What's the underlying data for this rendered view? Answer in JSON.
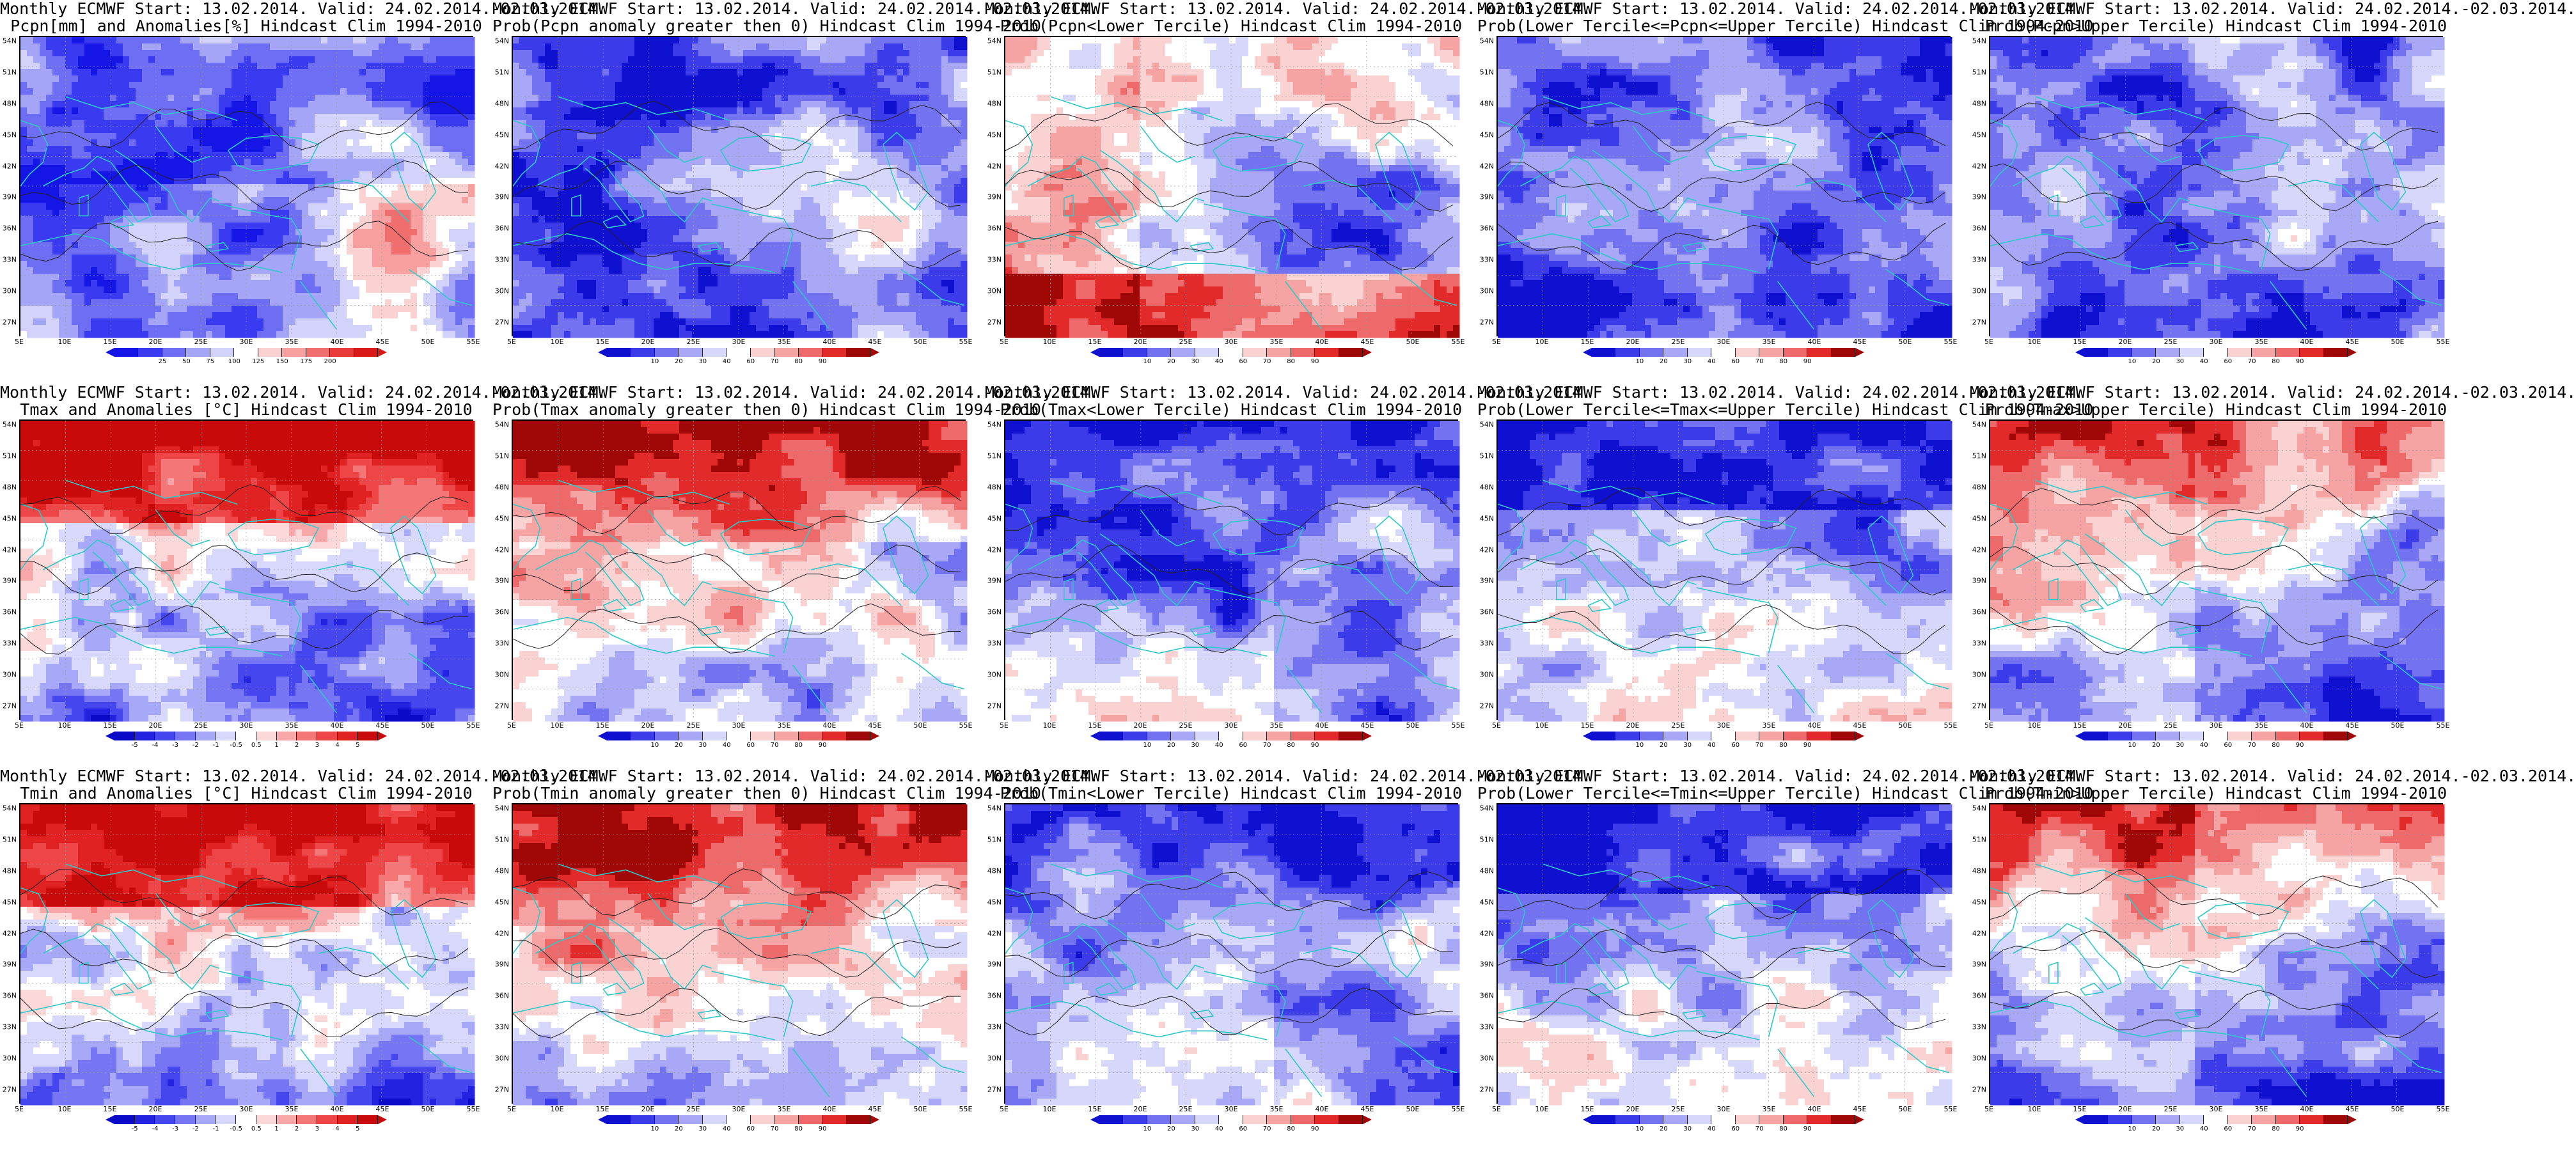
{
  "panels": [
    {
      "line1": "Monthly ECMWF Start: 13.02.2014. Valid: 24.02.2014.-02.03.2014.",
      "line2": "Pcpn[mm] and Anomalies[%] Hindcast Clim 1994-2010",
      "kind": "pcpn_anom",
      "cbar": "pcpn"
    },
    {
      "line1": "Monthly ECMWF Start: 13.02.2014. Valid: 24.02.2014.-02.03.2014.",
      "line2": "Prob(Pcpn anomaly greater then 0) Hindcast Clim 1994-2010",
      "kind": "pcpn_prob_pos",
      "cbar": "prob"
    },
    {
      "line1": "Monthly ECMWF Start: 13.02.2014. Valid: 24.02.2014.-02.03.2014.",
      "line2": "Prob(Pcpn<Lower Tercile) Hindcast Clim 1994-2010",
      "kind": "pcpn_low",
      "cbar": "prob"
    },
    {
      "line1": "Monthly ECMWF Start: 13.02.2014. Valid: 24.02.2014.-02.03.2014.",
      "line2": "Prob(Lower Tercile<=Pcpn<=Upper Tercile) Hindcast Clim 1994-2010",
      "kind": "pcpn_mid",
      "cbar": "prob"
    },
    {
      "line1": "Monthly ECMWF Start: 13.02.2014. Valid: 24.02.2014.-02.03.2014.",
      "line2": "Prob(Pcpn>Upper Tercile) Hindcast Clim 1994-2010",
      "kind": "pcpn_up",
      "cbar": "prob"
    },
    {
      "line1": "Monthly ECMWF Start: 13.02.2014. Valid: 24.02.2014.-02.03.2014.",
      "line2": "Tmax and Anomalies [°C] Hindcast Clim 1994-2010",
      "kind": "warm",
      "cbar": "temp"
    },
    {
      "line1": "Monthly ECMWF Start: 13.02.2014. Valid: 24.02.2014.-02.03.2014.",
      "line2": "Prob(Tmax anomaly greater then 0) Hindcast Clim 1994-2010",
      "kind": "warm_strong",
      "cbar": "prob"
    },
    {
      "line1": "Monthly ECMWF Start: 13.02.2014. Valid: 24.02.2014.-02.03.2014.",
      "line2": "Prob(Tmax<Lower Tercile) Hindcast Clim 1994-2010",
      "kind": "cold_strong",
      "cbar": "prob"
    },
    {
      "line1": "Monthly ECMWF Start: 13.02.2014. Valid: 24.02.2014.-02.03.2014.",
      "line2": "Prob(Lower Tercile<=Tmax<=Upper Tercile) Hindcast Clim 1994-2010",
      "kind": "mid_cold",
      "cbar": "prob"
    },
    {
      "line1": "Monthly ECMWF Start: 13.02.2014. Valid: 24.02.2014.-02.03.2014.",
      "line2": "Prob(Tmax>Upper Tercile) Hindcast Clim 1994-2010",
      "kind": "warm_up",
      "cbar": "prob"
    },
    {
      "line1": "Monthly ECMWF Start: 13.02.2014. Valid: 24.02.2014.-02.03.2014.",
      "line2": "Tmin and Anomalies [°C] Hindcast Clim 1994-2010",
      "kind": "warm",
      "cbar": "temp"
    },
    {
      "line1": "Monthly ECMWF Start: 13.02.2014. Valid: 24.02.2014.-02.03.2014.",
      "line2": "Prob(Tmin anomaly greater then 0) Hindcast Clim 1994-2010",
      "kind": "warm_strong",
      "cbar": "prob"
    },
    {
      "line1": "Monthly ECMWF Start: 13.02.2014. Valid: 24.02.2014.-02.03.2014.",
      "line2": "Prob(Tmin<Lower Tercile) Hindcast Clim 1994-2010",
      "kind": "cold_strong",
      "cbar": "prob"
    },
    {
      "line1": "Monthly ECMWF Start: 13.02.2014. Valid: 24.02.2014.-02.03.2014.",
      "line2": "Prob(Lower Tercile<=Tmin<=Upper Tercile) Hindcast Clim 1994-2010",
      "kind": "mid_cold",
      "cbar": "prob"
    },
    {
      "line1": "Monthly ECMWF Start: 13.02.2014. Valid: 24.02.2014.-02.03.2014.",
      "line2": "Prob(Tmin>Upper Tercile) Hindcast Clim 1994-2010",
      "kind": "warm_up",
      "cbar": "prob"
    }
  ],
  "lat_labels": [
    "54N",
    "51N",
    "48N",
    "45N",
    "42N",
    "39N",
    "36N",
    "33N",
    "30N",
    "27N"
  ],
  "lon_labels": [
    "5E",
    "10E",
    "15E",
    "20E",
    "25E",
    "30E",
    "35E",
    "40E",
    "45E",
    "50E",
    "55E"
  ],
  "colorbars": {
    "pcpn": {
      "labels": [
        "25",
        "50",
        "75",
        "100",
        "125",
        "150",
        "175",
        "200"
      ],
      "colors": [
        "#1515e6",
        "#3a3af0",
        "#6e6ef5",
        "#a5a5f8",
        "#d2d2fb",
        "#ffffff",
        "#fbd2d2",
        "#f8a0a0",
        "#f06e6e",
        "#e83a3a",
        "#d81a1a"
      ]
    },
    "prob": {
      "labels": [
        "10",
        "20",
        "30",
        "40",
        "60",
        "70",
        "80",
        "90"
      ],
      "colors": [
        "#1010d0",
        "#3b3bea",
        "#7373f2",
        "#a8a8f7",
        "#d7d7fb",
        "#ffffff",
        "#fbd2d2",
        "#f5a3a3",
        "#ee6a6a",
        "#e22a2a",
        "#a00808"
      ]
    },
    "temp": {
      "labels": [
        "-5",
        "-4",
        "-3",
        "-2",
        "-1",
        "-0.5",
        "0.5",
        "1",
        "2",
        "3",
        "4",
        "5"
      ],
      "colors": [
        "#0a0ac8",
        "#2222e0",
        "#4646ee",
        "#7676f4",
        "#a8a8f8",
        "#d8d8fc",
        "#ffffff",
        "#fcd8d8",
        "#f8a8a8",
        "#f47676",
        "#ee4646",
        "#e02222",
        "#c80a0a"
      ]
    }
  },
  "colors": {
    "coast": "#2fc8c8",
    "contour": "#222222",
    "grid": "#9a9a9a"
  }
}
